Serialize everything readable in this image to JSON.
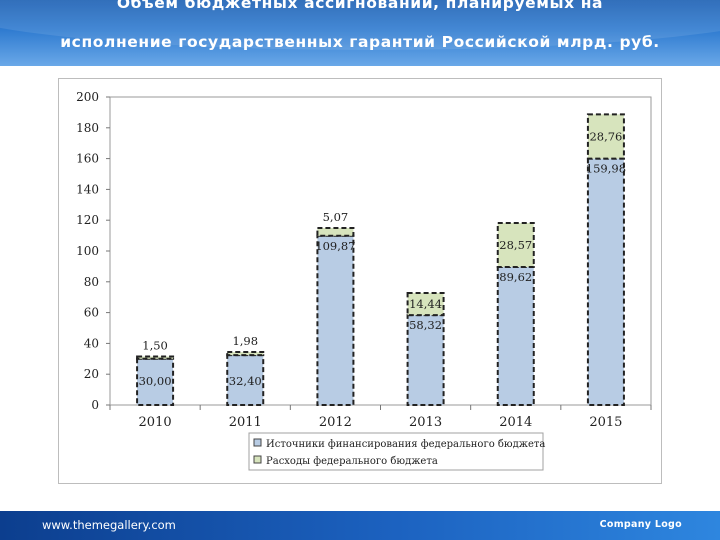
{
  "header": {
    "title_line1": "Объем бюджетных ассигнований, планируемых на",
    "title_line2": "исполнение государственных гарантий Российской млрд. руб."
  },
  "footer": {
    "url": "www.themegallery.com",
    "logo": "Company Logo"
  },
  "chart_data": {
    "type": "bar",
    "stacked": true,
    "categories": [
      "2010",
      "2011",
      "2012",
      "2013",
      "2014",
      "2015"
    ],
    "series": [
      {
        "name": "Источники финансирования федерального бюджета",
        "values": [
          30.0,
          32.4,
          109.87,
          58.32,
          89.62,
          159.98
        ],
        "labels": [
          "30,00",
          "32,40",
          "109,87",
          "58,32",
          "89,62",
          "159,98"
        ],
        "color": "#b8cce4"
      },
      {
        "name": "Расходы федерального бюджета",
        "values": [
          1.5,
          1.98,
          5.07,
          14.44,
          28.57,
          28.76
        ],
        "labels": [
          "1,50",
          "1,98",
          "5,07",
          "14,44",
          "28,57",
          "28,76"
        ],
        "color": "#d7e4bd"
      }
    ],
    "ylim": [
      0,
      200
    ],
    "yticks": [
      "0",
      "20",
      "40",
      "60",
      "80",
      "100",
      "120",
      "140",
      "160",
      "180",
      "200"
    ],
    "legend_position": "bottom"
  }
}
